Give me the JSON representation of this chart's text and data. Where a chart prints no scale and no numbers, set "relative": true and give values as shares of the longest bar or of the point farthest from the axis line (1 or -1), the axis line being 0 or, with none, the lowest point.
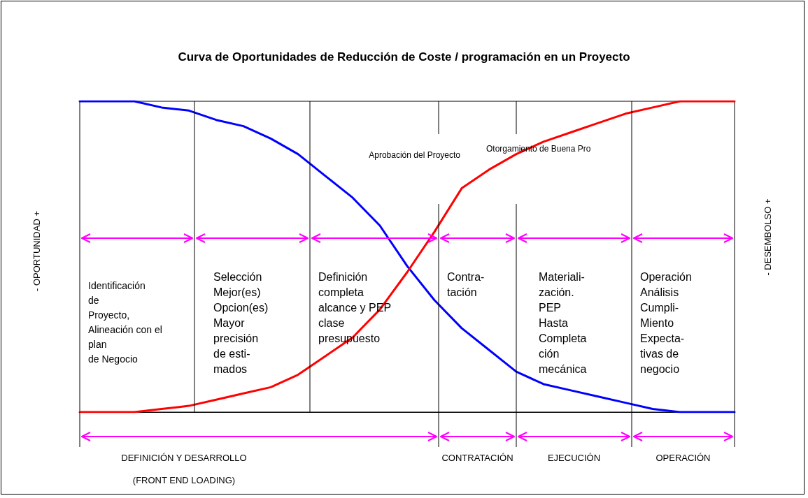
{
  "chart_data": {
    "type": "line",
    "title": "Curva de Oportunidades de Reducción de Coste / programación en un Proyecto",
    "ylabel": "-     OPORTUNIDAD     +",
    "y2label": "-     DESEMBOLSO     +",
    "relative": true,
    "grid": false,
    "marker": "none",
    "categories": [
      null,
      null,
      null,
      null,
      null,
      null,
      null,
      null,
      null,
      null,
      null,
      null,
      null,
      null,
      null,
      null,
      null,
      null,
      null,
      null,
      null,
      null,
      null,
      null,
      null
    ],
    "series": [
      {
        "color": "#0000ff",
        "values": [
          1,
          1,
          1,
          0.98,
          0.97,
          0.94,
          0.92,
          0.88,
          0.83,
          0.76,
          0.69,
          0.6,
          0.47,
          0.36,
          0.27,
          0.2,
          0.13,
          0.09,
          0.07,
          0.05,
          0.03,
          0.01,
          0,
          0,
          0
        ]
      },
      {
        "color": "#ff0000",
        "values": [
          0,
          0,
          0,
          0.01,
          0.02,
          0.04,
          0.06,
          0.08,
          0.12,
          0.18,
          0.24,
          0.33,
          0.45,
          0.58,
          0.72,
          0.78,
          0.83,
          0.87,
          0.9,
          0.93,
          0.96,
          0.98,
          1,
          1,
          1
        ]
      }
    ],
    "annotations": [
      "Identificación\nde\nProyecto,\nAlineación con el\nplan\nde Negocio",
      "Selección\nMejor(es)\nOpcion(es)\nMayor\nprecisión\nde esti-\nmados",
      "Definición\ncompleta\nalcance y PEP\nclase\npresupuesto",
      "Contra-\ntación",
      "Materiali-\nzación.\nPEP\nHasta\nCompleta\nción\nmecánica",
      "Operación\nAnálisis\nCumpli-\nMiento\nExpecta-\ntivas  de\nnegocio",
      "Aprobación del Proyecto",
      "Otorgamiento de Buena Pro",
      "DEFINICIÓN Y DESARROLLO\n\n(FRONT END LOADING)",
      "CONTRATACIÓN",
      "EJECUCIÓN",
      "OPERACIÓN"
    ]
  }
}
